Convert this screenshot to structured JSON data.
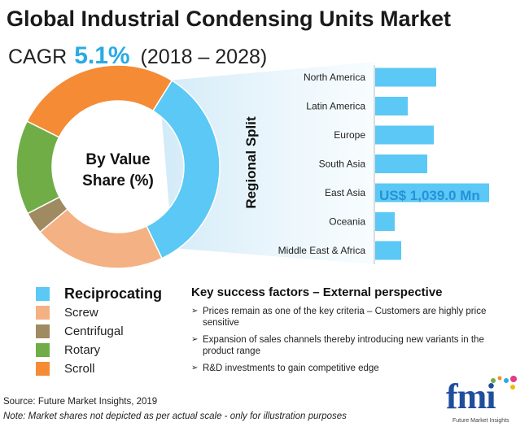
{
  "title": "Global Industrial Condensing Units Market",
  "cagr": {
    "label": "CAGR",
    "value": "5.1%",
    "period": "(2018 – 2028)"
  },
  "donut_center": {
    "line1": "By Value",
    "line2": "Share (%)"
  },
  "regional_axis_label": "Regional Split",
  "callout": "US$ 1,039.0 Mn",
  "key_success": {
    "title": "Key success factors – External perspective",
    "items": [
      "Prices remain as one of the key criteria – Customers are highly price sensitive",
      "Expansion of sales channels thereby introducing new variants in the product range",
      "R&D investments to gain competitive edge"
    ]
  },
  "source": "Source: Future Market Insights, 2019",
  "note": "Note:  Market shares not depicted as per actual scale - only for illustration purposes",
  "logo": {
    "mark": "fmi",
    "sub": "Future Market Insights"
  },
  "colors": {
    "reciprocating": "#5bc8f5",
    "screw": "#f4b183",
    "centrifugal": "#a08a62",
    "rotary": "#70ad47",
    "scroll": "#f58b35",
    "bar": "#5bc8f5",
    "accent": "#29abe2"
  },
  "chart_data": [
    {
      "type": "pie",
      "variant": "donut",
      "note": "shares not to actual scale",
      "legend": "bottom-left",
      "categories": [
        "Reciprocating",
        "Screw",
        "Centrifugal",
        "Rotary",
        "Scroll"
      ],
      "highlighted": "Reciprocating",
      "values": [
        34,
        21,
        3.5,
        15,
        26.5
      ]
    },
    {
      "type": "bar",
      "orientation": "horizontal",
      "categories": [
        "North America",
        "Latin America",
        "Europe",
        "South Asia",
        "East Asia",
        "Oceania",
        "Middle East & Africa"
      ],
      "values": [
        75,
        40,
        72,
        64,
        140,
        24,
        32
      ],
      "highlighted": "East Asia",
      "grid": false
    }
  ]
}
